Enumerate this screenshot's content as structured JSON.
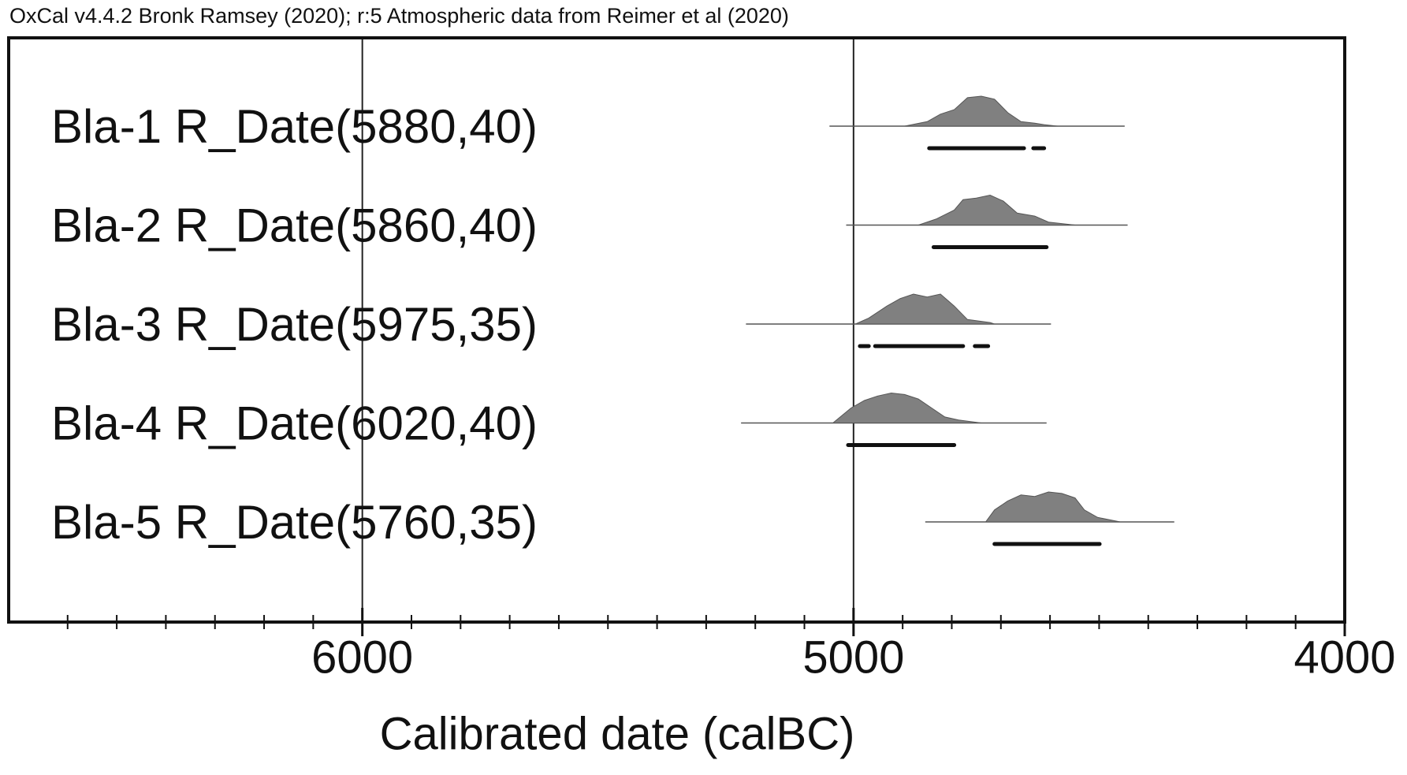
{
  "chart_data": {
    "type": "multiplot",
    "header": "OxCal v4.4.2 Bronk Ramsey (2020); r:5 Atmospheric data from Reimer et al (2020)",
    "xlabel": "Calibrated date (calBC)",
    "xlim": [
      6720,
      4000
    ],
    "xticks": [
      6000,
      5000,
      4000
    ],
    "xminorticks": [
      6600,
      6500,
      6400,
      6300,
      6200,
      6100,
      5900,
      5800,
      5700,
      5600,
      5500,
      5400,
      5300,
      5200,
      5100,
      4900,
      4800,
      4700,
      4600,
      4500,
      4400,
      4300,
      4200,
      4100
    ],
    "grid": true,
    "color": "#808080",
    "items": [
      {
        "name": "Bla-1 R_Date(5880,40)",
        "span": [
          5049,
          4448
        ],
        "x": [
          4896,
          4850,
          4823,
          4795,
          4768,
          4740,
          4713,
          4686,
          4659,
          4631,
          4612,
          4585
        ],
        "density": [
          0,
          0.15,
          0.4,
          0.55,
          0.95,
          1,
          0.9,
          0.45,
          0.15,
          0.1,
          0.05,
          0
        ],
        "ranges": [
          [
            4846,
            4653
          ],
          [
            4634,
            4612
          ]
        ]
      },
      {
        "name": "Bla-2 R_Date(5860,40)",
        "span": [
          5015,
          4442
        ],
        "x": [
          4868,
          4832,
          4795,
          4777,
          4750,
          4722,
          4695,
          4667,
          4631,
          4603,
          4549
        ],
        "density": [
          0,
          0.2,
          0.5,
          0.85,
          0.9,
          1,
          0.8,
          0.4,
          0.3,
          0.1,
          0
        ],
        "ranges": [
          [
            4837,
            4607
          ]
        ]
      },
      {
        "name": "Bla-3 R_Date(5975,35)",
        "span": [
          5219,
          4598
        ],
        "x": [
          4996,
          4969,
          4932,
          4905,
          4878,
          4850,
          4823,
          4795,
          4768,
          4722,
          4713
        ],
        "density": [
          0,
          0.2,
          0.6,
          0.85,
          1,
          0.9,
          1,
          0.6,
          0.15,
          0.05,
          0
        ],
        "ranges": [
          [
            4987,
            4969
          ],
          [
            4956,
            4777
          ],
          [
            4753,
            4726
          ]
        ]
      },
      {
        "name": "Bla-4 R_Date(6020,40)",
        "span": [
          5229,
          4607
        ],
        "x": [
          5042,
          5005,
          4978,
          4951,
          4923,
          4896,
          4868,
          4841,
          4814,
          4786,
          4740
        ],
        "density": [
          0,
          0.5,
          0.75,
          0.9,
          1,
          0.95,
          0.8,
          0.5,
          0.2,
          0.1,
          0
        ],
        "ranges": [
          [
            5011,
            4795
          ]
        ]
      },
      {
        "name": "Bla-5 R_Date(5760,35)",
        "span": [
          4854,
          4347
        ],
        "x": [
          4731,
          4713,
          4686,
          4659,
          4631,
          4603,
          4576,
          4549,
          4530,
          4503,
          4457
        ],
        "density": [
          0,
          0.4,
          0.7,
          0.9,
          0.85,
          1,
          0.95,
          0.8,
          0.4,
          0.15,
          0
        ],
        "ranges": [
          [
            4713,
            4499
          ]
        ]
      }
    ]
  }
}
